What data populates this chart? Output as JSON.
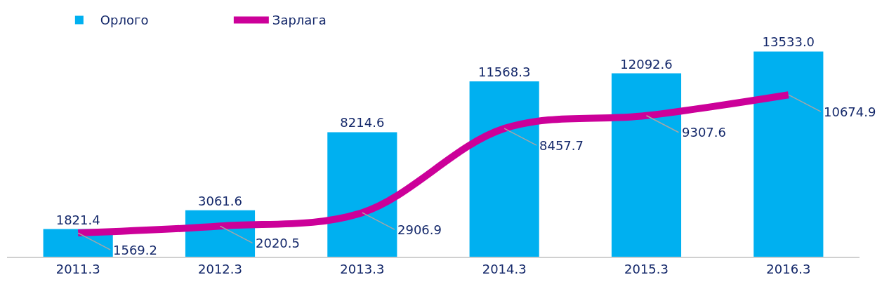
{
  "chart_data": {
    "type": "bar",
    "categories": [
      "2011.3",
      "2012.3",
      "2013.3",
      "2014.3",
      "2015.3",
      "2016.3"
    ],
    "series": [
      {
        "name": "Орлого",
        "color": "#00b0f0",
        "values": [
          1821.4,
          3061.6,
          8214.6,
          11568.3,
          12092.6,
          13533.0
        ],
        "value_labels": [
          "1821.4",
          "3061.6",
          "8214.6",
          "11568.3",
          "12092.6",
          "13533.0"
        ]
      },
      {
        "name": "Зарлага",
        "type": "line",
        "color": "#cc0099",
        "values": [
          1569.2,
          2020.5,
          2906.9,
          8457.7,
          9307.6,
          10674.9
        ],
        "value_labels": [
          "1569.2",
          "2020.5",
          "2906.9",
          "8457.7",
          "9307.6",
          "10674.9"
        ]
      }
    ],
    "legend": "top left",
    "tick_labels": "x",
    "marker": "none",
    "line_style": "solid"
  }
}
